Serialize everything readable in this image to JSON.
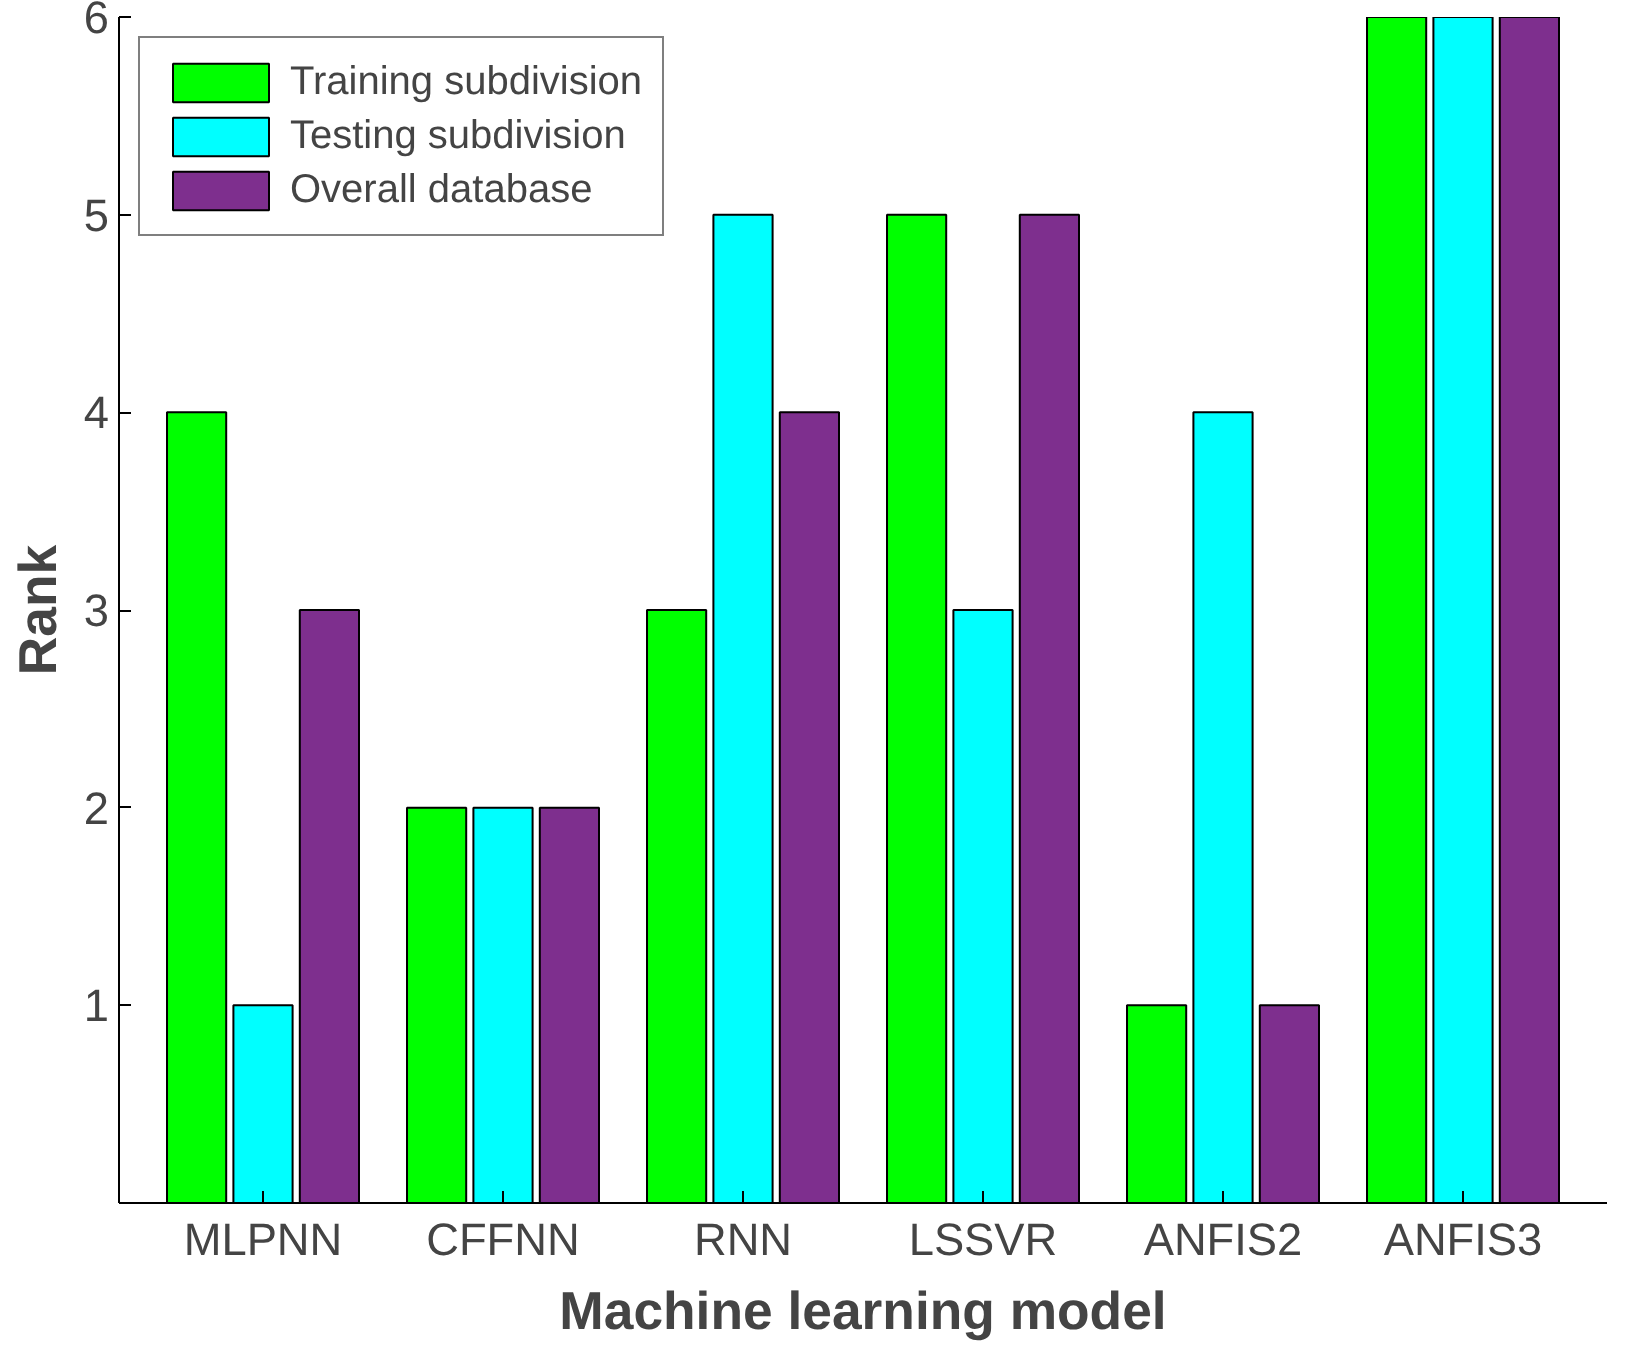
{
  "chart_data": {
    "type": "bar",
    "xlabel": "Machine learning model",
    "ylabel": "Rank",
    "categories": [
      "MLPNN",
      "CFFNN",
      "RNN",
      "LSSVR",
      "ANFIS2",
      "ANFIS3"
    ],
    "series": [
      {
        "name": "Training subdivision",
        "color": "#00ff00",
        "values": [
          4,
          2,
          3,
          5,
          1,
          6
        ]
      },
      {
        "name": "Testing subdivision",
        "color": "#00ffff",
        "values": [
          1,
          2,
          5,
          3,
          4,
          6
        ]
      },
      {
        "name": "Overall database",
        "color": "#7e2f8e",
        "values": [
          3,
          2,
          4,
          5,
          1,
          6
        ]
      }
    ],
    "ylim": [
      0,
      6
    ],
    "yticks": [
      1,
      2,
      3,
      4,
      5,
      6
    ],
    "grid": false,
    "legend": "top left"
  }
}
